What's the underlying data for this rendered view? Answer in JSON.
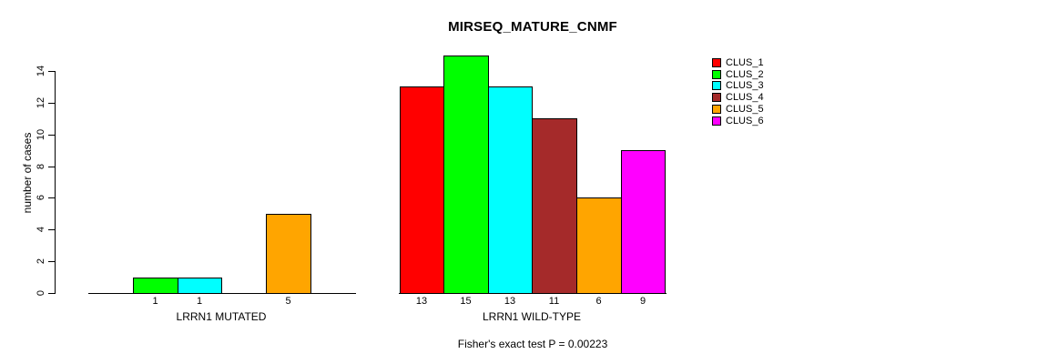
{
  "title": "MIRSEQ_MATURE_CNMF",
  "footnote": "Fisher's exact test P = 0.00223",
  "y_axis": {
    "label": "number of cases",
    "tick_labels": [
      "0",
      "2",
      "4",
      "6",
      "8",
      "10",
      "12",
      "14"
    ]
  },
  "legend": {
    "items": [
      {
        "label": "CLUS_1",
        "color": "#FF0000"
      },
      {
        "label": "CLUS_2",
        "color": "#00FF00"
      },
      {
        "label": "CLUS_3",
        "color": "#00FFFF"
      },
      {
        "label": "CLUS_4",
        "color": "#A52A2A"
      },
      {
        "label": "CLUS_5",
        "color": "#FFA500"
      },
      {
        "label": "CLUS_6",
        "color": "#FF00FF"
      }
    ]
  },
  "chart_data": {
    "type": "bar",
    "title": "MIRSEQ_MATURE_CNMF",
    "xlabel": "",
    "ylabel": "number of cases",
    "ylim": [
      0,
      15
    ],
    "yticks": [
      0,
      2,
      4,
      6,
      8,
      10,
      12,
      14
    ],
    "grid": false,
    "legend_position": "top-right",
    "categories": [
      "LRRN1 MUTATED",
      "LRRN1 WILD-TYPE"
    ],
    "series": [
      {
        "name": "CLUS_1",
        "color": "#FF0000",
        "values": [
          0,
          13
        ]
      },
      {
        "name": "CLUS_2",
        "color": "#00FF00",
        "values": [
          1,
          15
        ]
      },
      {
        "name": "CLUS_3",
        "color": "#00FFFF",
        "values": [
          1,
          13
        ]
      },
      {
        "name": "CLUS_4",
        "color": "#A52A2A",
        "values": [
          0,
          11
        ]
      },
      {
        "name": "CLUS_5",
        "color": "#FFA500",
        "values": [
          5,
          6
        ]
      },
      {
        "name": "CLUS_6",
        "color": "#FF00FF",
        "values": [
          0,
          9
        ]
      }
    ],
    "bar_value_labels_visible": [
      "1",
      "1",
      "5",
      "13",
      "15",
      "13",
      "11",
      "6",
      "9"
    ],
    "annotation": "Fisher's exact test P = 0.00223"
  }
}
